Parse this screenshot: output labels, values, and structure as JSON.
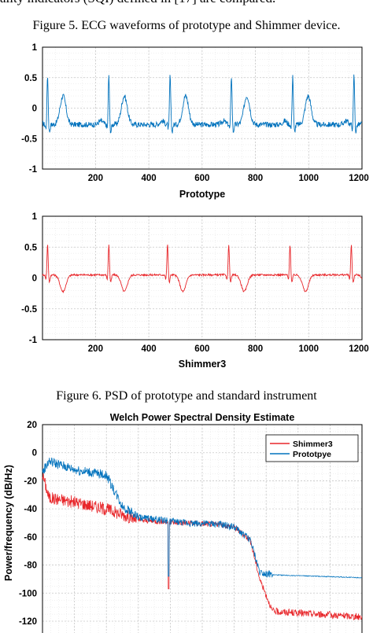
{
  "page": {
    "top_text": "ality indicators (SQI) defined in [17] are compared.",
    "fig5_caption": "Figure 5.   ECG waveforms of prototype and Shimmer device.",
    "fig6_caption": "Figure 6.   PSD of prototype and standard instrument"
  },
  "colors": {
    "prototype": "#0072BD",
    "shimmer": "#E8262A",
    "grid": "#c8c8c8"
  },
  "chart_data": [
    {
      "type": "line",
      "xlabel": "Prototype",
      "xlim": [
        1,
        1200
      ],
      "ylim": [
        -1,
        1
      ],
      "xticks": [
        "200",
        "400",
        "600",
        "800",
        "1000",
        "1200"
      ],
      "yticks": [
        "1",
        "0.5",
        "0",
        "-0.5",
        "-1"
      ],
      "grid": true,
      "series": [
        {
          "color": "#0072BD",
          "baseline": -0.27,
          "r_peak": 0.5,
          "t_wave": 0.2,
          "r_peaks_x": [
            20,
            250,
            480,
            710,
            940,
            1170
          ]
        }
      ]
    },
    {
      "type": "line",
      "xlabel": "Shimmer3",
      "xlim": [
        1,
        1200
      ],
      "ylim": [
        -1,
        1
      ],
      "xticks": [
        "200",
        "400",
        "600",
        "800",
        "1000",
        "1200"
      ],
      "yticks": [
        "1",
        "0.5",
        "0",
        "-0.5",
        "-1"
      ],
      "grid": true,
      "series": [
        {
          "color": "#E8262A",
          "baseline": 0.05,
          "r_peak": 0.5,
          "t_wave": -0.22,
          "r_peaks_x": [
            20,
            250,
            470,
            700,
            930,
            1160
          ]
        }
      ]
    },
    {
      "type": "line",
      "title": "Welch Power Spectral Density Estimate",
      "ylabel": "Power/frequency (dB/Hz)",
      "ylim": [
        -125,
        20
      ],
      "yticks": [
        "20",
        "0",
        "-20",
        "-40",
        "-60",
        "-80",
        "-100",
        "-120"
      ],
      "grid": true,
      "legend_position": "top-right",
      "series": [
        {
          "name": "Shimmer3",
          "color": "#E8262A",
          "x": [
            0,
            0.02,
            0.12,
            0.2,
            0.3,
            0.45,
            0.55,
            0.6,
            0.65,
            0.68,
            0.72,
            1.0
          ],
          "y": [
            -15,
            -32,
            -36,
            -40,
            -48,
            -50,
            -51,
            -53,
            -62,
            -90,
            -113,
            -117
          ]
        },
        {
          "name": "Prototpye",
          "color": "#0072BD",
          "x": [
            0,
            0.02,
            0.1,
            0.2,
            0.25,
            0.3,
            0.45,
            0.55,
            0.6,
            0.65,
            0.68,
            0.72,
            1.0
          ],
          "y": [
            -14,
            -6,
            -12,
            -16,
            -38,
            -46,
            -50,
            -51,
            -53,
            -62,
            -85,
            -87,
            -89
          ]
        }
      ]
    }
  ]
}
